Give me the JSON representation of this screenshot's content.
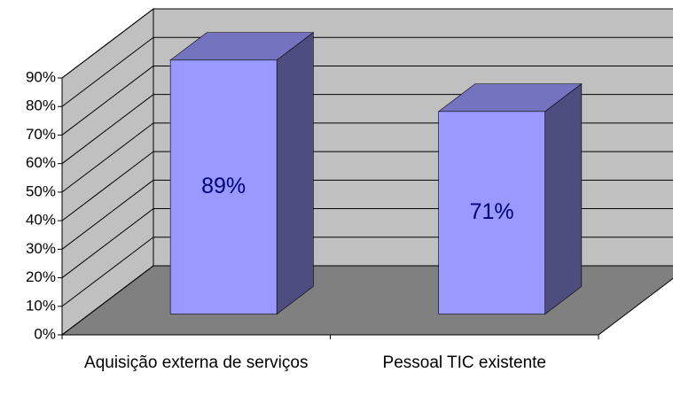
{
  "chart_data": {
    "type": "bar3d",
    "categories": [
      "Aquisição externa de serviços",
      "Pessoal TIC existente"
    ],
    "values": [
      89,
      71
    ],
    "value_labels": [
      "89%",
      "71%"
    ],
    "color": "#9999ff",
    "ylim": [
      0,
      90
    ],
    "yticks": [
      {
        "value": 0,
        "label": "0%"
      },
      {
        "value": 10,
        "label": "10%"
      },
      {
        "value": 20,
        "label": "20%"
      },
      {
        "value": 30,
        "label": "30%"
      },
      {
        "value": 40,
        "label": "40%"
      },
      {
        "value": 50,
        "label": "50%"
      },
      {
        "value": 60,
        "label": "60%"
      },
      {
        "value": 70,
        "label": "70%"
      },
      {
        "value": 80,
        "label": "80%"
      },
      {
        "value": 90,
        "label": "90%"
      }
    ],
    "grid": true
  }
}
